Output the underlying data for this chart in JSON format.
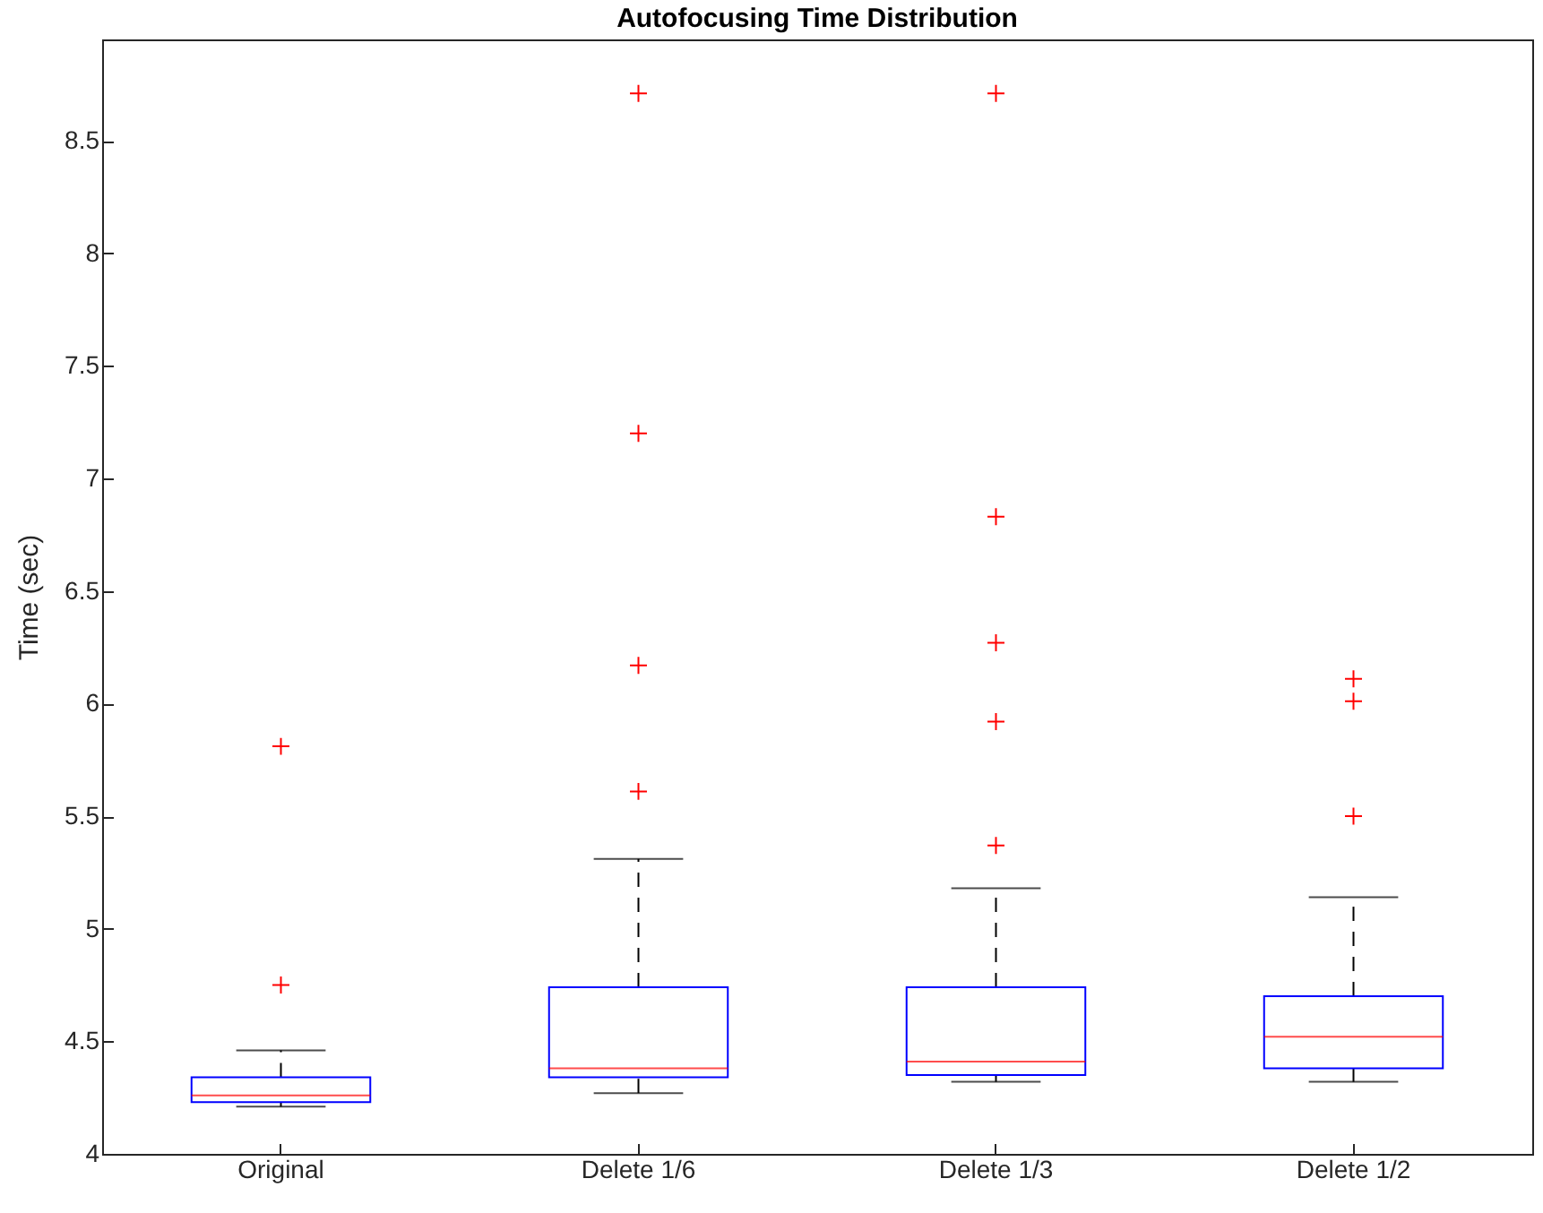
{
  "chart_data": {
    "type": "box",
    "title": "Autofocusing Time Distribution",
    "ylabel": "Time (sec)",
    "categories": [
      "Original",
      "Delete 1/6",
      "Delete 1/3",
      "Delete 1/2"
    ],
    "color": "#0000ff",
    "marker": "cross",
    "line_style": "dashed",
    "grid": false,
    "boxes": [
      {
        "low": 4.21,
        "q1": 4.23,
        "median": 4.26,
        "q3": 4.34,
        "high": 4.46,
        "outliers": [
          4.75,
          5.81
        ]
      },
      {
        "low": 4.27,
        "q1": 4.34,
        "median": 4.38,
        "q3": 4.74,
        "high": 5.31,
        "outliers": [
          5.61,
          6.17,
          7.2,
          8.71
        ]
      },
      {
        "low": 4.32,
        "q1": 4.35,
        "median": 4.41,
        "q3": 4.74,
        "high": 5.18,
        "outliers": [
          5.37,
          5.92,
          6.27,
          6.83,
          8.71
        ]
      },
      {
        "low": 4.32,
        "q1": 4.38,
        "median": 4.52,
        "q3": 4.7,
        "high": 5.14,
        "outliers": [
          5.5,
          6.01,
          6.11
        ]
      }
    ],
    "ylim": [
      4,
      8.95
    ],
    "yticks": [
      4,
      4.5,
      5,
      5.5,
      6,
      6.5,
      7,
      7.5,
      8,
      8.5
    ]
  }
}
